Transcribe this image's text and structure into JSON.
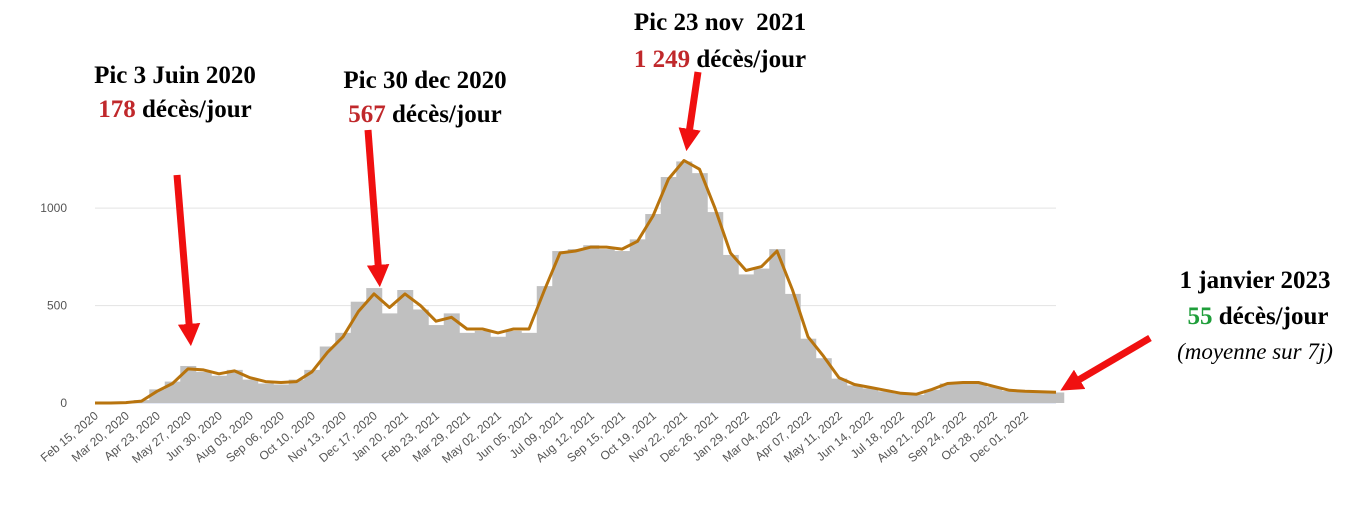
{
  "chart_data": {
    "type": "bar",
    "categories": [
      "Feb 15, 2020",
      null,
      "Mar 20, 2020",
      null,
      "Apr 23, 2020",
      null,
      "May 27, 2020",
      null,
      "Jun 30, 2020",
      null,
      "Aug 03, 2020",
      null,
      "Sep 06, 2020",
      null,
      "Oct 10, 2020",
      null,
      "Nov 13, 2020",
      null,
      "Dec 17, 2020",
      null,
      "Jan 20, 2021",
      null,
      "Feb 23, 2021",
      null,
      "Mar 29, 2021",
      null,
      "May 02, 2021",
      null,
      "Jun 05, 2021",
      null,
      "Jul 09, 2021",
      null,
      "Aug 12, 2021",
      null,
      "Sep 15, 2021",
      null,
      "Oct 19, 2021",
      null,
      "Nov 22, 2021",
      null,
      "Dec 26, 2021",
      null,
      "Jan 29, 2022",
      null,
      "Mar 04, 2022",
      null,
      "Apr 07, 2022",
      null,
      "May 11, 2022",
      null,
      "Jun 14, 2022",
      null,
      "Jul 18, 2022",
      null,
      "Aug 21, 2022",
      null,
      "Sep 24, 2022",
      null,
      "Oct 28, 2022",
      null,
      "Dec 01, 2022",
      null,
      null
    ],
    "series": [
      {
        "color": "#c0c0c0",
        "values": [
          0,
          0,
          3,
          15,
          70,
          110,
          190,
          160,
          140,
          170,
          120,
          100,
          95,
          120,
          170,
          290,
          360,
          520,
          590,
          460,
          580,
          480,
          400,
          460,
          360,
          370,
          340,
          370,
          360,
          600,
          780,
          790,
          810,
          790,
          780,
          840,
          970,
          1160,
          1240,
          1180,
          980,
          760,
          660,
          690,
          790,
          560,
          330,
          230,
          125,
          90,
          75,
          60,
          48,
          42,
          68,
          100,
          108,
          104,
          82,
          62,
          58,
          56,
          54
        ]
      },
      {
        "color": "#b8740e",
        "values": [
          0,
          0,
          2,
          10,
          60,
          100,
          175,
          170,
          150,
          165,
          130,
          110,
          105,
          110,
          160,
          260,
          340,
          470,
          560,
          490,
          560,
          500,
          420,
          440,
          380,
          380,
          360,
          380,
          380,
          580,
          770,
          780,
          800,
          800,
          790,
          830,
          960,
          1150,
          1245,
          1200,
          1000,
          770,
          680,
          700,
          780,
          580,
          340,
          240,
          130,
          95,
          80,
          65,
          50,
          45,
          70,
          100,
          105,
          105,
          85,
          65,
          60,
          58,
          55
        ]
      }
    ],
    "ylim": [
      0,
      1350
    ],
    "yticks": [
      0,
      500,
      1000
    ],
    "grid": true,
    "annotations": [
      {
        "title": "Pic 3 Juin 2020",
        "value": "178",
        "unit": "décès/jour",
        "value_color": "#c0282b"
      },
      {
        "title": "Pic 30 dec 2020",
        "value": "567",
        "unit": "décès/jour",
        "value_color": "#c0282b"
      },
      {
        "title": "Pic 23 nov  2021",
        "value": "1 249",
        "unit": "décès/jour",
        "value_color": "#c0282b"
      },
      {
        "title": "1 janvier 2023",
        "value": "55",
        "unit": "décès/jour",
        "value_color": "#1f9e3a",
        "note": "(moyenne sur 7j)"
      }
    ]
  }
}
